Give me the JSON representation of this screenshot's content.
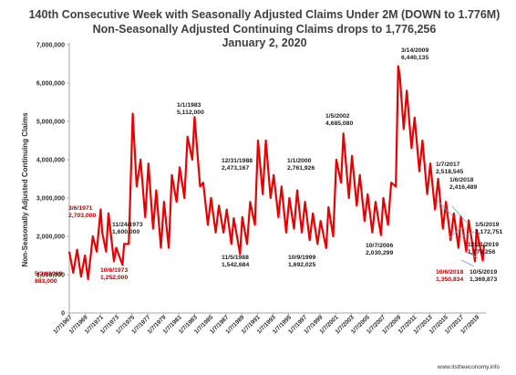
{
  "chart_data": {
    "type": "line",
    "title": [
      "140th Consecutive Week with Seasonally Adjusted Claims Under 2M  (DOWN to 1.776M)",
      "Non-Seasonally Adjusted Continuing Claims drops to 1,776,256",
      "January 2, 2020"
    ],
    "xlabel": "",
    "ylabel": "Non-Seasonally Adjusted Continuing Claims",
    "ylim": [
      0,
      7000000
    ],
    "yticks": [
      "0",
      "1,000,000",
      "2,000,000",
      "3,000,000",
      "4,000,000",
      "5,000,000",
      "6,000,000",
      "7,000,000"
    ],
    "xlim": [
      1967.0,
      2020.2
    ],
    "xticks": [
      "1/7/1967",
      "1/7/1969",
      "1/7/1971",
      "1/7/1973",
      "1/7/1975",
      "1/7/1977",
      "1/7/1979",
      "1/7/1981",
      "1/7/1983",
      "1/7/1985",
      "1/7/1987",
      "1/7/1989",
      "1/7/1991",
      "1/7/1993",
      "1/7/1995",
      "1/7/1997",
      "1/7/1999",
      "1/7/2001",
      "1/7/2003",
      "1/7/2005",
      "1/7/2007",
      "1/7/2009",
      "1/7/2011",
      "1/7/2013",
      "1/7/2015",
      "1/7/2017",
      "1/7/2019"
    ],
    "grid": false,
    "legend": "none",
    "series": [
      {
        "color": "#e60000",
        "x": [
          1967.0,
          1967.5,
          1968.0,
          1968.5,
          1969.0,
          1969.4,
          1970.0,
          1970.5,
          1971.0,
          1971.2,
          1971.7,
          1972.0,
          1972.7,
          1973.0,
          1973.8,
          1974.0,
          1974.6,
          1975.1,
          1975.6,
          1976.1,
          1976.7,
          1977.1,
          1977.7,
          1978.1,
          1978.7,
          1979.1,
          1979.7,
          1980.1,
          1980.7,
          1981.1,
          1981.7,
          1982.1,
          1982.7,
          1983.0,
          1983.7,
          1984.1,
          1984.7,
          1985.1,
          1985.7,
          1986.1,
          1986.7,
          1987.1,
          1987.7,
          1988.0,
          1988.8,
          1989.1,
          1989.7,
          1990.1,
          1990.7,
          1991.1,
          1991.7,
          1992.1,
          1992.7,
          1993.1,
          1993.7,
          1994.1,
          1994.7,
          1995.1,
          1995.7,
          1996.1,
          1996.7,
          1997.1,
          1997.7,
          1998.1,
          1998.7,
          1999.1,
          1999.8,
          2000.1,
          2000.7,
          2001.1,
          2001.7,
          2002.0,
          2002.7,
          2003.1,
          2003.7,
          2004.1,
          2004.7,
          2005.1,
          2005.7,
          2006.1,
          2006.8,
          2007.1,
          2007.7,
          2008.1,
          2008.7,
          2009.0,
          2009.2,
          2009.7,
          2010.1,
          2010.7,
          2011.1,
          2011.7,
          2012.1,
          2012.7,
          2013.1,
          2013.7,
          2014.1,
          2014.7,
          2015.1,
          2015.7,
          2016.1,
          2016.7,
          2017.0,
          2017.7,
          2018.0,
          2018.8,
          2019.0,
          2019.8,
          2019.95
        ],
        "y": [
          1600000,
          1050000,
          1650000,
          950000,
          1500000,
          883000,
          2000000,
          1600000,
          2703000,
          2100000,
          1600000,
          2600000,
          1350000,
          1700000,
          1252000,
          1800000,
          1800000,
          5200000,
          3300000,
          4000000,
          2500000,
          3900000,
          2200000,
          3200000,
          1700000,
          2900000,
          1700000,
          3600000,
          2900000,
          3800000,
          3000000,
          4600000,
          4000000,
          5112000,
          3300000,
          3400000,
          2300000,
          3000000,
          2100000,
          2800000,
          2100000,
          2700000,
          1800000,
          2473167,
          1542684,
          2500000,
          1800000,
          2900000,
          2300000,
          4500000,
          3100000,
          4500000,
          3000000,
          3600000,
          2500000,
          3300000,
          2100000,
          3000000,
          2200000,
          3200000,
          2100000,
          2900000,
          1900000,
          2600000,
          1800000,
          2400000,
          1692025,
          2761926,
          2000000,
          4000000,
          3400000,
          4685080,
          3000000,
          4100000,
          2800000,
          3600000,
          2400000,
          3100000,
          2100000,
          2900000,
          2030299,
          3000000,
          2300000,
          3400000,
          3300000,
          6440135,
          6200000,
          4800000,
          5800000,
          4300000,
          5100000,
          3700000,
          4500000,
          3100000,
          3900000,
          2700000,
          3500000,
          2200000,
          2900000,
          1900000,
          2600000,
          1700000,
          2518545,
          1600000,
          2416489,
          1350834,
          2172751,
          1369873,
          1776256
        ]
      }
    ],
    "annotations": [
      {
        "date": "5/24/1969",
        "value": "883,000",
        "color": "#c00000"
      },
      {
        "date": "3/6/1971",
        "value": "2,703,000",
        "color": "#c00000"
      },
      {
        "date": "10/6/1973",
        "value": "1,252,000",
        "color": "#c00000"
      },
      {
        "date": "11/24/1973",
        "value": "1,600,000",
        "color": "#202020"
      },
      {
        "date": "1/1/1983",
        "value": "5,112,000",
        "color": "#202020"
      },
      {
        "date": "12/31/1988",
        "value": "2,473,167",
        "color": "#202020"
      },
      {
        "date": "11/5/1988",
        "value": "1,542,684",
        "color": "#202020"
      },
      {
        "date": "1/1/2000",
        "value": "2,761,926",
        "color": "#202020"
      },
      {
        "date": "10/9/1999",
        "value": "1,692,025",
        "color": "#202020"
      },
      {
        "date": "1/5/2002",
        "value": "4,685,080",
        "color": "#202020"
      },
      {
        "date": "10/7/2006",
        "value": "2,030,299",
        "color": "#202020"
      },
      {
        "date": "3/14/2009",
        "value": "6,440,135",
        "color": "#202020"
      },
      {
        "date": "1/7/2017",
        "value": "2,518,545",
        "color": "#202020"
      },
      {
        "date": "1/6/2018",
        "value": "2,416,489",
        "color": "#202020"
      },
      {
        "date": "1/5/2019",
        "value": "2,172,751",
        "color": "#202020"
      },
      {
        "date": "12/21/2019",
        "value": "1,776,256",
        "color": "#202020"
      },
      {
        "date": "10/6/2018",
        "value": "1,350,834",
        "color": "#c00000"
      },
      {
        "date": "10/5/2019",
        "value": "1,369,873",
        "color": "#202020"
      }
    ],
    "credit": "www.itstheeconomy.info"
  }
}
